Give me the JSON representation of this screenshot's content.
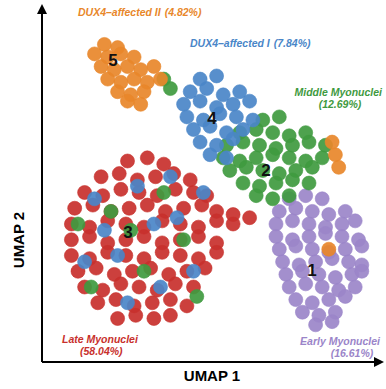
{
  "chart_data": {
    "type": "scatter",
    "x_label": "UMAP 1",
    "y_label": "UMAP 2",
    "xlim": [
      0,
      100
    ],
    "ylim": [
      0,
      100
    ],
    "tick_labels": false,
    "grid": false,
    "series": [
      {
        "name": "Late Myonuclei",
        "share_label": "(58.04%)",
        "cluster": "3",
        "color": "#c8302c",
        "x": [
          25,
          31,
          36,
          17,
          22.5,
          28,
          33.5,
          39,
          44,
          12,
          17.5,
          23,
          28.5,
          34,
          39.5,
          45,
          49,
          9,
          14.5,
          20,
          25.5,
          31,
          36.5,
          42,
          47.5,
          52,
          57,
          62,
          8,
          13.5,
          19,
          24.5,
          30,
          35.5,
          41,
          46.5,
          52,
          57,
          8,
          13.5,
          19,
          24.5,
          30,
          35.5,
          41,
          46.5,
          52,
          8,
          13.5,
          19,
          24.5,
          30,
          35.5,
          41,
          46.5,
          52,
          10,
          15.5,
          21,
          26.5,
          32,
          37.5,
          43,
          48.5,
          12,
          17.5,
          23,
          28.5,
          34,
          39.5,
          45,
          16,
          21.5,
          27,
          32.5,
          38,
          43,
          22,
          27.5,
          33,
          38
        ],
        "values": [
          60,
          61,
          59,
          55,
          56,
          54,
          55,
          56,
          54,
          50,
          49,
          51,
          50,
          49,
          51,
          50,
          49,
          45,
          46,
          44,
          45,
          46,
          44,
          45,
          46,
          44,
          43,
          42,
          40,
          39,
          41,
          40,
          39,
          41,
          40,
          39,
          41,
          40,
          35,
          36,
          34,
          35,
          36,
          34,
          35,
          36,
          34,
          30,
          29,
          31,
          30,
          29,
          31,
          30,
          29,
          31,
          25,
          26,
          24,
          25,
          26,
          24,
          25,
          26,
          20,
          19,
          21,
          20,
          19,
          21,
          20,
          15,
          16,
          14,
          15,
          16,
          14,
          10,
          11,
          10,
          11
        ]
      },
      {
        "name": "Early Myonuclei",
        "share_label": "(16.61%)",
        "cluster": "1",
        "color": "#9b85c9",
        "x": [
          74,
          79,
          84,
          71,
          76,
          81,
          86,
          91,
          70,
          75,
          80,
          85,
          90,
          94,
          70,
          75,
          80,
          85,
          90,
          95,
          71,
          76,
          81,
          86,
          91,
          96,
          72,
          77,
          82,
          87,
          92,
          96,
          73,
          78,
          83,
          88,
          93,
          96,
          74,
          79,
          84,
          89,
          94,
          76,
          81,
          86,
          91,
          78,
          83,
          88,
          82,
          87
        ],
        "values": [
          48,
          49,
          48,
          44,
          45,
          44,
          43,
          44,
          40,
          41,
          40,
          39,
          40,
          41,
          36,
          35,
          36,
          37,
          36,
          35,
          32,
          33,
          32,
          31,
          32,
          33,
          28,
          27,
          28,
          29,
          28,
          27,
          24,
          25,
          24,
          23,
          24,
          25,
          20,
          21,
          20,
          19,
          20,
          16,
          15,
          16,
          17,
          12,
          11,
          12,
          8,
          9
        ]
      },
      {
        "name": "Middle Myonuclei",
        "share_label": "(12.69%)",
        "cluster": "2",
        "color": "#3f9a3f",
        "x": [
          66,
          71,
          59,
          64,
          69,
          74,
          79,
          55,
          60,
          65,
          70,
          75,
          80,
          85,
          54,
          59,
          64,
          69,
          74,
          79,
          84,
          56,
          61,
          66,
          71,
          76,
          81,
          60,
          65,
          70,
          75,
          80,
          64,
          69,
          74,
          20,
          30,
          42,
          14,
          36,
          26,
          46,
          10,
          36,
          38
        ],
        "values": [
          73,
          74,
          69,
          70,
          69,
          68,
          69,
          65,
          66,
          65,
          64,
          65,
          66,
          65,
          61,
          60,
          61,
          62,
          61,
          60,
          61,
          57,
          58,
          57,
          56,
          57,
          58,
          53,
          52,
          53,
          54,
          53,
          49,
          48,
          49,
          44,
          25,
          35,
          20,
          50,
          38,
          17,
          40,
          86,
          83
        ]
      },
      {
        "name": "DUX4–affected I",
        "share_label": "(7.84%)",
        "cluster": "4",
        "color": "#4a86c8",
        "x": [
          47,
          52,
          44,
          49,
          54,
          59,
          42,
          47,
          52,
          57,
          62,
          43,
          48,
          53,
          58,
          63,
          45,
          50,
          55,
          60,
          47,
          52,
          57,
          50,
          55,
          15,
          22,
          35,
          40,
          28,
          18,
          45,
          33,
          25,
          48,
          12,
          38
        ],
        "values": [
          86,
          87,
          82,
          83,
          81,
          82,
          78,
          79,
          77,
          78,
          79,
          74,
          73,
          75,
          74,
          73,
          70,
          71,
          69,
          70,
          66,
          65,
          67,
          62,
          61,
          48,
          30,
          20,
          42,
          52,
          38,
          25,
          40,
          15,
          50,
          28,
          55
        ]
      },
      {
        "name": "DUX4–affected II",
        "share_label": "(4.82%)",
        "cluster": "5",
        "color": "#e8872a",
        "x": [
          18,
          22,
          15,
          19,
          23,
          27,
          17,
          21,
          25,
          29,
          33,
          19,
          23,
          27,
          31,
          35,
          22,
          26,
          30,
          25,
          29,
          88,
          89,
          87,
          86
        ],
        "values": [
          97,
          96,
          94,
          93,
          94,
          93,
          90,
          89,
          90,
          89,
          90,
          86,
          85,
          86,
          85,
          86,
          82,
          81,
          82,
          79,
          78,
          62,
          58,
          66,
          32
        ]
      }
    ]
  }
}
